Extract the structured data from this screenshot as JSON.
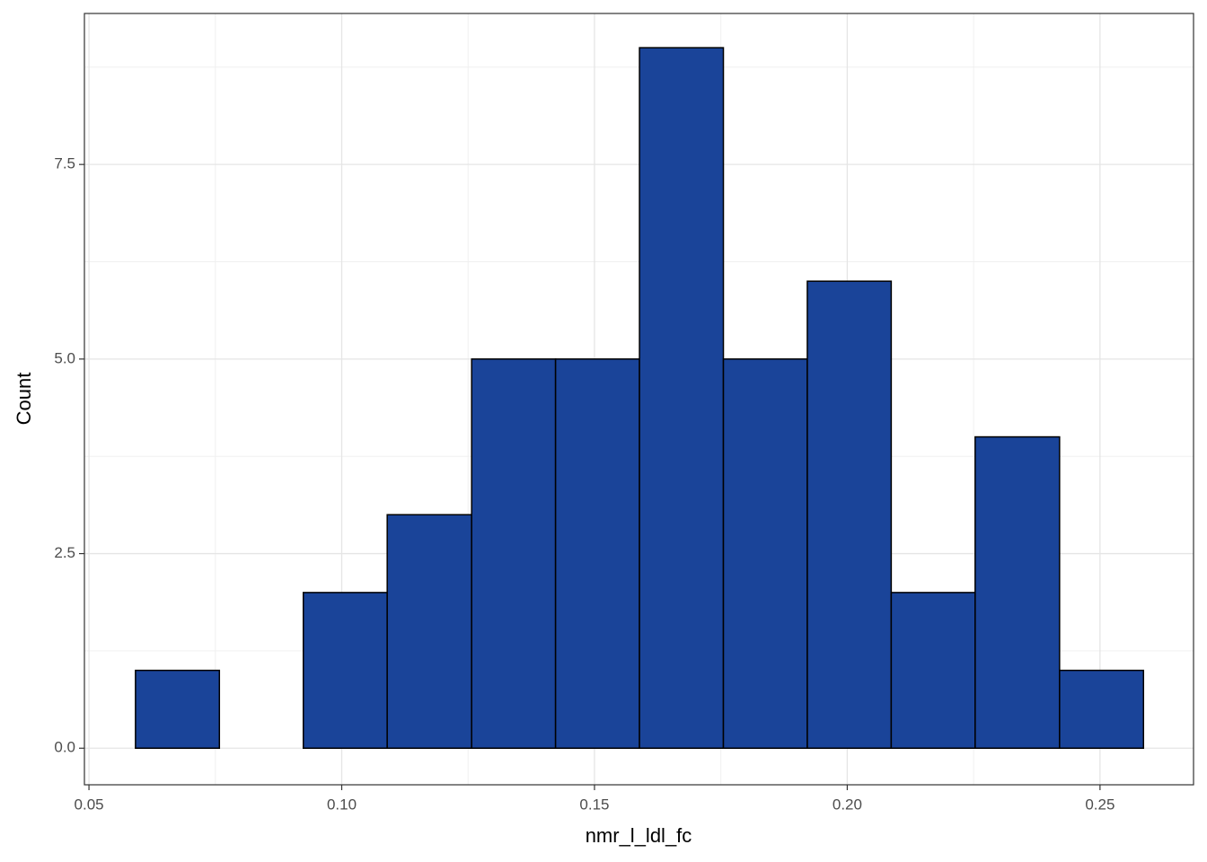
{
  "chart_data": {
    "type": "histogram",
    "x_label": "nmr_l_ldl_fc",
    "y_label": "Count",
    "bins": [
      0.0592,
      0.0758,
      0.0924,
      0.109,
      0.1257,
      0.1423,
      0.1589,
      0.1755,
      0.1921,
      0.2087,
      0.2253,
      0.242,
      0.2586
    ],
    "values": [
      1,
      0,
      2,
      3,
      5,
      5,
      9,
      5,
      6,
      2,
      4,
      1
    ],
    "color": "#1a4499",
    "edge_color": "#000000",
    "xlim": [
      0.0491,
      0.2685
    ],
    "ylim": [
      -0.47,
      9.44
    ],
    "xticks": [
      0.05,
      {
        "value": 0.1,
        "label": "0.10"
      },
      0.15,
      {
        "value": 0.2,
        "label": "0.20"
      },
      0.25
    ],
    "yticks": [
      {
        "value": 0,
        "label": "0.0"
      },
      {
        "value": 2.5,
        "label": "2.5"
      },
      {
        "value": 5,
        "label": "5.0"
      },
      {
        "value": 7.5,
        "label": "7.5"
      }
    ],
    "grid": true
  }
}
